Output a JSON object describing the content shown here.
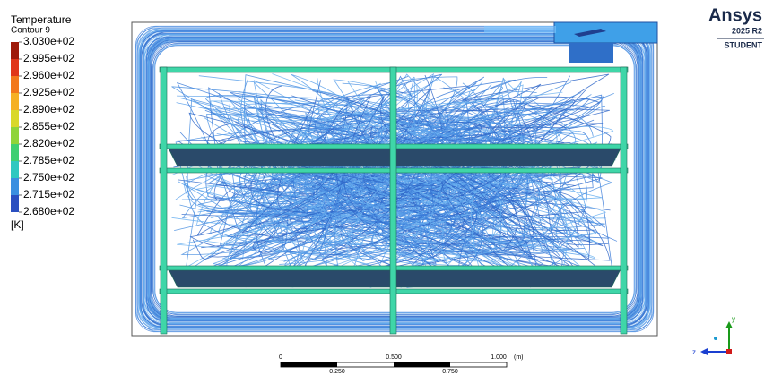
{
  "legend": {
    "title": "Temperature",
    "subtitle": "Contour 9",
    "labels": [
      "3.030e+02",
      "2.995e+02",
      "2.960e+02",
      "2.925e+02",
      "2.890e+02",
      "2.855e+02",
      "2.820e+02",
      "2.785e+02",
      "2.750e+02",
      "2.715e+02",
      "2.680e+02"
    ],
    "colors": [
      "#9e1a0a",
      "#e0361a",
      "#f2781c",
      "#f5b025",
      "#d9d82a",
      "#8fd43a",
      "#3fcf72",
      "#2fc8c0",
      "#3a8fe0",
      "#2a4fc0"
    ],
    "unit": "[K]"
  },
  "logo": {
    "name": "Ansys",
    "version": "2025 R2",
    "edition": "STUDENT"
  },
  "scale_bar": {
    "top_labels": [
      "0",
      "0.500",
      "1.000"
    ],
    "unit": "(m)",
    "bottom_labels": [
      "0.250",
      "0.750"
    ]
  },
  "triad": {
    "up": "y",
    "left": "z"
  }
}
